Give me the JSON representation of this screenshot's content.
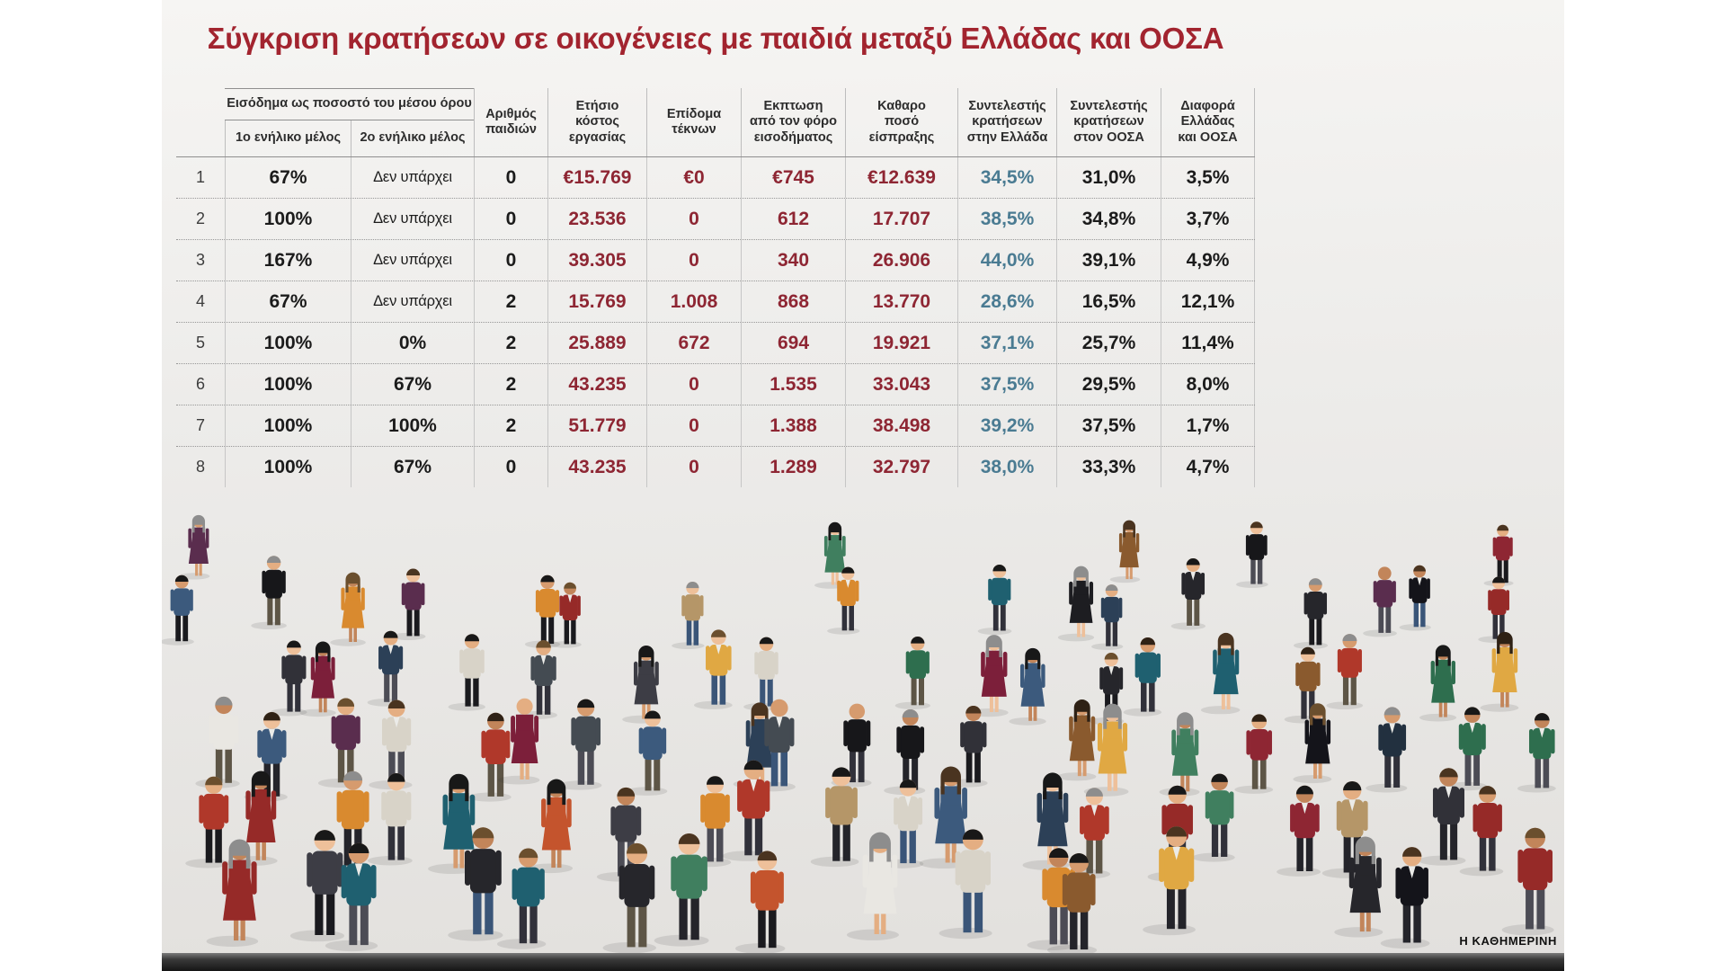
{
  "title": "Σύγκριση κρατήσεων σε οικογένειες με παιδιά μεταξύ Ελλάδας και ΟΟΣΑ",
  "brand": "Η ΚΑΘΗΜΕΡΙΝΗ",
  "colors": {
    "title_red": "#a2242f",
    "money_red": "#8e2633",
    "greece_teal": "#4a7b92",
    "text_dark": "#1b1b1b"
  },
  "table": {
    "group_header": "Εισόδημα ως ποσοστό του μέσου όρου",
    "subheaders": [
      "1ο ενήλικο μέλος",
      "2ο ενήλικο μέλος"
    ],
    "headers": {
      "children": "Αριθμός\nπαιδιών",
      "labor_cost": "Ετήσιο\nκόστος\nεργασίας",
      "child_benefit": "Επίδομα\nτέκνων",
      "tax_discount": "Εκπτωση\nαπό τον φόρο\nεισοδήματος",
      "net": "Καθαρο\nποσό\nείσπραξης",
      "greece": "Συντελεστής\nκρατήσεων\nστην Ελλάδα",
      "oecd": "Συντελεστής\nκρατήσεων\nστον ΟΟΣΑ",
      "diff": "Διαφορά\nΕλλάδας\nκαι ΟΟΣΑ"
    },
    "rows": [
      {
        "num": "1",
        "adult1": "67%",
        "adult2": "Δεν υπάρχει",
        "children": "0",
        "labor_cost": "€15.769",
        "child_benefit": "€0",
        "tax_discount": "€745",
        "net": "€12.639",
        "greece": "34,5%",
        "oecd": "31,0%",
        "diff": "3,5%"
      },
      {
        "num": "2",
        "adult1": "100%",
        "adult2": "Δεν υπάρχει",
        "children": "0",
        "labor_cost": "23.536",
        "child_benefit": "0",
        "tax_discount": "612",
        "net": "17.707",
        "greece": "38,5%",
        "oecd": "34,8%",
        "diff": "3,7%"
      },
      {
        "num": "3",
        "adult1": "167%",
        "adult2": "Δεν υπάρχει",
        "children": "0",
        "labor_cost": "39.305",
        "child_benefit": "0",
        "tax_discount": "340",
        "net": "26.906",
        "greece": "44,0%",
        "oecd": "39,1%",
        "diff": "4,9%"
      },
      {
        "num": "4",
        "adult1": "67%",
        "adult2": "Δεν υπάρχει",
        "children": "2",
        "labor_cost": "15.769",
        "child_benefit": "1.008",
        "tax_discount": "868",
        "net": "13.770",
        "greece": "28,6%",
        "oecd": "16,5%",
        "diff": "12,1%"
      },
      {
        "num": "5",
        "adult1": "100%",
        "adult2": "0%",
        "children": "2",
        "labor_cost": "25.889",
        "child_benefit": "672",
        "tax_discount": "694",
        "net": "19.921",
        "greece": "37,1%",
        "oecd": "25,7%",
        "diff": "11,4%"
      },
      {
        "num": "6",
        "adult1": "100%",
        "adult2": "67%",
        "children": "2",
        "labor_cost": "43.235",
        "child_benefit": "0",
        "tax_discount": "1.535",
        "net": "33.043",
        "greece": "37,5%",
        "oecd": "29,5%",
        "diff": "8,0%"
      },
      {
        "num": "7",
        "adult1": "100%",
        "adult2": "100%",
        "children": "2",
        "labor_cost": "51.779",
        "child_benefit": "0",
        "tax_discount": "1.388",
        "net": "38.498",
        "greece": "39,2%",
        "oecd": "37,5%",
        "diff": "1,7%"
      },
      {
        "num": "8",
        "adult1": "100%",
        "adult2": "67%",
        "children": "0",
        "labor_cost": "43.235",
        "child_benefit": "0",
        "tax_discount": "1.289",
        "net": "32.797",
        "greece": "38,0%",
        "oecd": "33,3%",
        "diff": "4,7%"
      }
    ]
  },
  "chart_data": {
    "type": "table",
    "title": "Σύγκριση κρατήσεων σε οικογένειες με παιδιά μεταξύ Ελλάδας και ΟΟΣΑ",
    "columns": [
      "#",
      "Εισόδημα ως ποσοστό του μέσου όρου - 1ο ενήλικο μέλος",
      "Εισόδημα ως ποσοστό του μέσου όρου - 2ο ενήλικο μέλος",
      "Αριθμός παιδιών",
      "Ετήσιο κόστος εργασίας",
      "Επίδομα τέκνων",
      "Εκπτωση από τον φόρο εισοδήματος",
      "Καθαρο ποσό είσπραξης",
      "Συντελεστής κρατήσεων στην Ελλάδα",
      "Συντελεστής κρατήσεων στον ΟΟΣΑ",
      "Διαφορά Ελλάδας και ΟΟΣΑ"
    ],
    "rows": [
      [
        "1",
        "67%",
        "Δεν υπάρχει",
        "0",
        "€15.769",
        "€0",
        "€745",
        "€12.639",
        "34,5%",
        "31,0%",
        "3,5%"
      ],
      [
        "2",
        "100%",
        "Δεν υπάρχει",
        "0",
        "23.536",
        "0",
        "612",
        "17.707",
        "38,5%",
        "34,8%",
        "3,7%"
      ],
      [
        "3",
        "167%",
        "Δεν υπάρχει",
        "0",
        "39.305",
        "0",
        "340",
        "26.906",
        "44,0%",
        "39,1%",
        "4,9%"
      ],
      [
        "4",
        "67%",
        "Δεν υπάρχει",
        "2",
        "15.769",
        "1.008",
        "868",
        "13.770",
        "28,6%",
        "16,5%",
        "12,1%"
      ],
      [
        "5",
        "100%",
        "0%",
        "2",
        "25.889",
        "672",
        "694",
        "19.921",
        "37,1%",
        "25,7%",
        "11,4%"
      ],
      [
        "6",
        "100%",
        "67%",
        "2",
        "43.235",
        "0",
        "1.535",
        "33.043",
        "37,5%",
        "29,5%",
        "8,0%"
      ],
      [
        "7",
        "100%",
        "100%",
        "2",
        "51.779",
        "0",
        "1.388",
        "38.498",
        "39,2%",
        "37,5%",
        "1,7%"
      ],
      [
        "8",
        "100%",
        "67%",
        "0",
        "43.235",
        "0",
        "1.289",
        "32.797",
        "38,0%",
        "33,3%",
        "4,7%"
      ]
    ]
  }
}
